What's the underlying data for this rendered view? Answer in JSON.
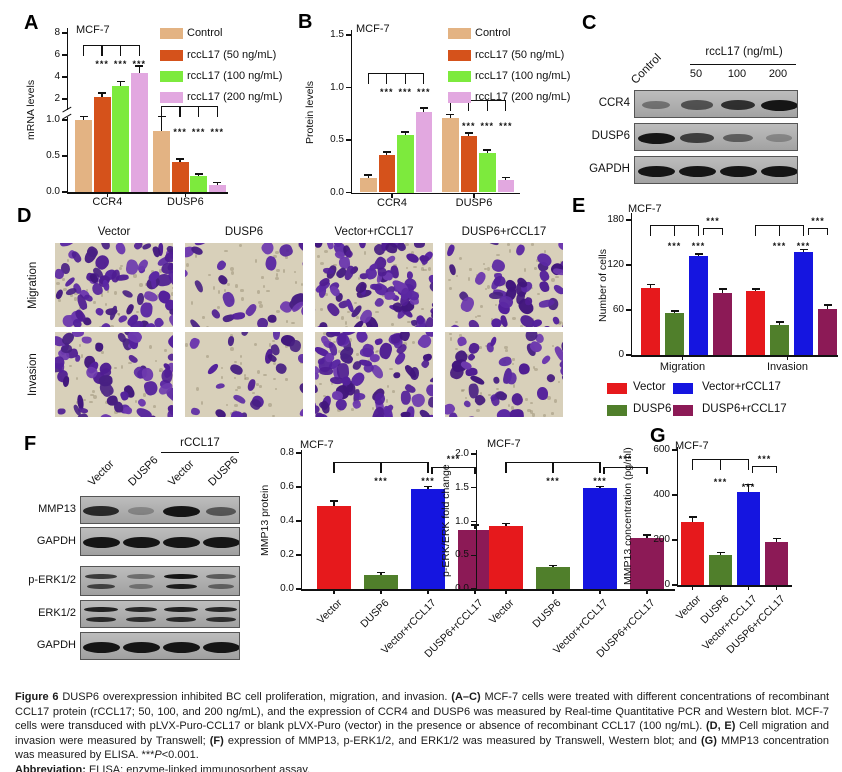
{
  "page": {
    "background": "#ffffff"
  },
  "panels": {
    "A": {
      "label": "A"
    },
    "B": {
      "label": "B"
    },
    "C": {
      "label": "C",
      "lane_header": "rccL17 (ng/mL)",
      "lanes": [
        "Control",
        "50",
        "100",
        "200"
      ],
      "rows": [
        {
          "label": "CCR4",
          "bands": [
            0.3,
            0.55,
            0.8,
            1.0
          ]
        },
        {
          "label": "DUSP6",
          "bands": [
            1.0,
            0.7,
            0.45,
            0.15
          ]
        },
        {
          "label": "GAPDH",
          "bands": [
            1.0,
            1.0,
            1.0,
            1.0
          ]
        }
      ]
    },
    "D": {
      "label": "D",
      "column_labels": [
        "Vector",
        "DUSP6",
        "Vector+rCCL17",
        "DUSP6+rCCL17"
      ],
      "row_labels": [
        "Migration",
        "Invasion"
      ],
      "relative_cell_density": [
        [
          72,
          26,
          95,
          48
        ],
        [
          66,
          24,
          88,
          42
        ]
      ]
    },
    "E": {
      "label": "E"
    },
    "F": {
      "label": "F",
      "lane_header": "rCCL17",
      "lanes": [
        "Vector",
        "DUSP6",
        "Vector",
        "DUSP6"
      ],
      "rows": [
        {
          "label": "MMP13",
          "bands": [
            0.85,
            0.15,
            1.0,
            0.5
          ],
          "double": false
        },
        {
          "label": "GAPDH",
          "bands": [
            1,
            1,
            1,
            1
          ],
          "double": false
        },
        {
          "label": "p-ERK1/2",
          "bands": [
            0.7,
            0.3,
            1.0,
            0.45
          ],
          "double": true
        },
        {
          "label": "ERK1/2",
          "bands": [
            0.9,
            0.85,
            0.9,
            0.85
          ],
          "double": true
        },
        {
          "label": "GAPDH",
          "bands": [
            1,
            1,
            1,
            1
          ],
          "double": false
        }
      ]
    },
    "G": {
      "label": "G"
    }
  },
  "chart_data": [
    {
      "id": "A",
      "type": "bar",
      "title": "MCF-7",
      "ylabel": "mRNA levels",
      "categories": [
        "CCR4",
        "DUSP6"
      ],
      "axis": {
        "broken": true,
        "lower_ticks": [
          "0.0",
          "0.5",
          "1.0"
        ],
        "upper_ticks": [
          "2",
          "4",
          "6",
          "8"
        ],
        "lower_range": [
          0,
          1.0
        ],
        "upper_range": [
          1,
          8
        ]
      },
      "series": [
        {
          "name": "Control",
          "color": "#e3b383",
          "values": [
            1.0,
            0.85
          ],
          "errors": [
            0.04,
            0.19
          ]
        },
        {
          "name": "rccL17 (50 ng/mL)",
          "color": "#d5521b",
          "values": [
            2.2,
            0.42
          ],
          "errors": [
            0.3,
            0.03
          ]
        },
        {
          "name": "rccL17 (100 ng/mL)",
          "color": "#7dea3d",
          "values": [
            3.2,
            0.22
          ],
          "errors": [
            0.35,
            0.02
          ]
        },
        {
          "name": "rccL17 (200 ng/mL)",
          "color": "#e2a8e0",
          "values": [
            4.4,
            0.1
          ],
          "errors": [
            0.55,
            0.02
          ]
        }
      ],
      "significance": "***"
    },
    {
      "id": "B",
      "type": "bar",
      "title": "MCF-7",
      "ylabel": "Protein levels",
      "categories": [
        "CCR4",
        "DUSP6"
      ],
      "ylim": [
        0,
        1.5
      ],
      "ticks": [
        "0.0",
        "0.5",
        "1.0",
        "1.5"
      ],
      "series": [
        {
          "name": "Control",
          "color": "#e3b383",
          "values": [
            0.14,
            0.71
          ],
          "errors": [
            0.02,
            0.03
          ]
        },
        {
          "name": "rccL17 (50 ng/mL)",
          "color": "#d5521b",
          "values": [
            0.36,
            0.54
          ],
          "errors": [
            0.02,
            0.02
          ]
        },
        {
          "name": "rccL17 (100 ng/mL)",
          "color": "#7dea3d",
          "values": [
            0.55,
            0.38
          ],
          "errors": [
            0.02,
            0.02
          ]
        },
        {
          "name": "rccL17 (200 ng/mL)",
          "color": "#e2a8e0",
          "values": [
            0.77,
            0.12
          ],
          "errors": [
            0.03,
            0.015
          ]
        }
      ],
      "significance": "***"
    },
    {
      "id": "E",
      "type": "bar",
      "title": "MCF-7",
      "ylabel": "Number of cells",
      "categories": [
        "Migration",
        "Invasion"
      ],
      "ylim": [
        0,
        180
      ],
      "ticks": [
        "0",
        "60",
        "120",
        "180"
      ],
      "series": [
        {
          "name": "Vector",
          "color": "#e6191c",
          "values": [
            90,
            85
          ],
          "errors": [
            3,
            2
          ]
        },
        {
          "name": "DUSP6",
          "color": "#507f2b",
          "values": [
            56,
            40
          ],
          "errors": [
            2,
            3
          ]
        },
        {
          "name": "Vector+rCCL17",
          "color": "#1515e0",
          "values": [
            132,
            138
          ],
          "errors": [
            2,
            2
          ]
        },
        {
          "name": "DUSP6+rCCL17",
          "color": "#8c1a56",
          "values": [
            83,
            62
          ],
          "errors": [
            4,
            4
          ]
        }
      ],
      "legend_position": "below",
      "significance": "***"
    },
    {
      "id": "F1",
      "type": "bar",
      "title": "MCF-7",
      "ylabel": "MMP13 protein",
      "categories": [
        "Vector",
        "DUSP6",
        "Vector+rCCL17",
        "DUSP6+rCCL17"
      ],
      "ylim": [
        0,
        0.8
      ],
      "ticks": [
        "0.0",
        "0.2",
        "0.4",
        "0.6",
        "0.8"
      ],
      "values": [
        0.49,
        0.08,
        0.59,
        0.35
      ],
      "errors": [
        0.025,
        0.012,
        0.008,
        0.022
      ],
      "colors": [
        "#e6191c",
        "#507f2b",
        "#1515e0",
        "#8c1a56"
      ],
      "significance": "***"
    },
    {
      "id": "F2",
      "type": "bar",
      "title": "MCF-7",
      "ylabel": "p-ERK/ERK fold change",
      "categories": [
        "Vector",
        "DUSP6",
        "Vector+rCCL17",
        "DUSP6+rCCL17"
      ],
      "ylim": [
        0,
        2.0
      ],
      "ticks": [
        "0.0",
        "0.5",
        "1.0",
        "1.5",
        "2.0"
      ],
      "values": [
        0.93,
        0.32,
        1.49,
        0.76
      ],
      "errors": [
        0.03,
        0.015,
        0.02,
        0.03
      ],
      "colors": [
        "#e6191c",
        "#507f2b",
        "#1515e0",
        "#8c1a56"
      ],
      "significance": "***"
    },
    {
      "id": "G",
      "type": "bar",
      "title": "MCF-7",
      "ylabel": "MMP13 concentration (pg/ml)",
      "categories": [
        "Vector",
        "DUSP6",
        "Vector+rCCL17",
        "DUSP6+rCCL17"
      ],
      "ylim": [
        0,
        600
      ],
      "ticks": [
        "0",
        "200",
        "400",
        "600"
      ],
      "values": [
        278,
        135,
        415,
        190
      ],
      "errors": [
        22,
        8,
        28,
        14
      ],
      "colors": [
        "#e6191c",
        "#507f2b",
        "#1515e0",
        "#8c1a56"
      ],
      "significance": "***"
    }
  ],
  "caption": {
    "main": [
      {
        "t": "Figure 6 ",
        "b": 1
      },
      {
        "t": "DUSP6 overexpression inhibited BC cell proliferation, migration, and invasion. ",
        "b": 0
      },
      {
        "t": "(A–C) ",
        "b": 1
      },
      {
        "t": "MCF-7 cells were treated with different concentrations of recombinant CCL17 protein (rCCL17; 50, 100, and 200 ng/mL), and the expression of CCR4 and DUSP6 was measured by Real-time Quantitative PCR and Western blot. MCF-7 cells were transduced with pLVX-Puro-CCL17 or blank pLVX-Puro (vector) in the presence or absence of recombinant CCL17 (100 ng/mL). ",
        "b": 0
      },
      {
        "t": "(D, E) ",
        "b": 1
      },
      {
        "t": "Cell migration and invasion were measured by Transwell; ",
        "b": 0
      },
      {
        "t": "(F) ",
        "b": 1
      },
      {
        "t": "expression of MMP13, p-ERK1/2, and ERK1/2 was measured by Transwell, Western blot; and ",
        "b": 0
      },
      {
        "t": "(G) ",
        "b": 1
      },
      {
        "t": "MMP13 concentration was measured by ELISA. ***",
        "b": 0
      },
      {
        "t": "P",
        "b": 0,
        "i": 1
      },
      {
        "t": "<0.001.",
        "b": 0
      }
    ],
    "abbreviation": [
      {
        "t": "Abbreviation: ",
        "b": 1
      },
      {
        "t": "ELISA: enzyme-linked immunosorbent assay.",
        "b": 0
      }
    ]
  }
}
